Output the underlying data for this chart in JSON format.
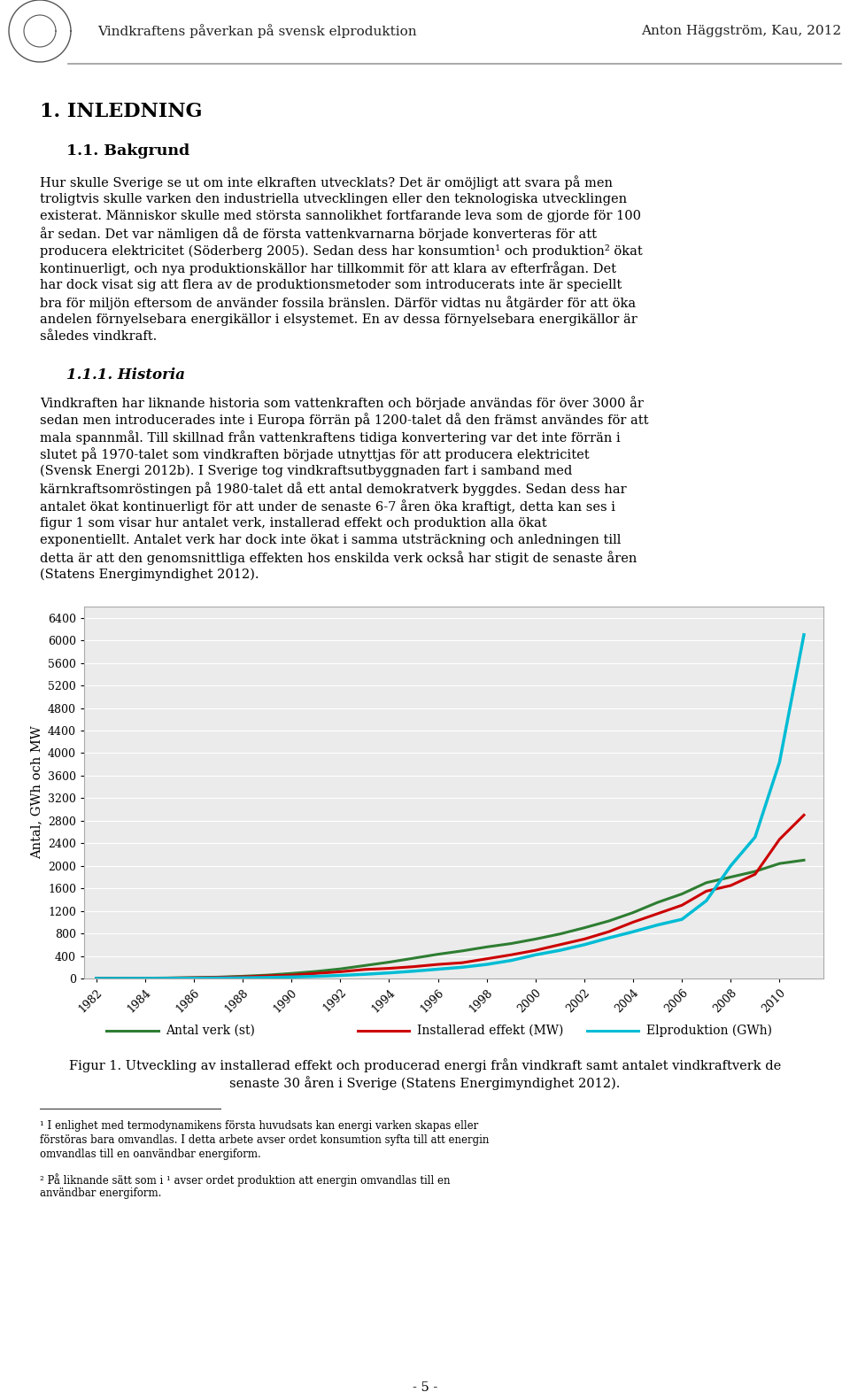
{
  "header_title": "Vindkraftens påverkan på svensk elproduktion",
  "header_author": "Anton Häggström, Kau, 2012",
  "section1": "1. INLEDNING",
  "section1_1": "1.1. Bakgrund",
  "para1": "Hur skulle Sverige se ut om inte elkraften utvecklats? Det är omöjligt att svara på men troligtvis skulle varken den industriella utvecklingen eller den teknologiska utvecklingen existerat. Människor skulle med största sannolikhet fortfarande leva som de gjorde för 100 år sedan. Det var nämligen då de första vattenkvarnarna började konverteras för att producera elektricitet (Söderberg 2005). Sedan dess har konsumtion¹ och produktion² ökat kontinuerligt, och nya produktionskällor har tillkommit för att klara av efterfrågan. Det har dock visat sig att flera av de produktionsmetoder som introducerats inte är speciellt bra för miljön eftersom de använder fossila bränslen. Därför vidtas nu åtgärder för att öka andelen förnyelsebara energikällor i elsystemet. En av dessa förnyelsebara energikällor är således vindkraft.",
  "section1_1_1": "1.1.1. Historia",
  "para2": "Vindkraften har liknande historia som vattenkraften och började användas för över 3000 år sedan men introducerades inte i Europa förrän på 1200-talet då den främst användes för att mala spannmål. Till skillnad från vattenkraftens tidiga konvertering var det inte förrän i slutet på 1970-talet som vindkraften började utnyttjas för att producera elektricitet (Svensk Energi 2012b). I Sverige tog vindkraftsutbyggnaden fart i samband med kärnkraftsomröstingen på 1980-talet då ett antal demokratverk byggdes. Sedan dess har antalet ökat kontinuerligt för att under de senaste 6-7 åren öka kraftigt, detta kan ses i figur 1 som visar hur antalet verk, installerad effekt och produktion alla ökat exponentiellt. Antalet verk har dock inte ökat i samma utsträckning och anledningen till detta är att den genomsnittliga effekten hos enskilda verk också har stigit de senaste åren (Statens Energimyndighet 2012).",
  "ylabel": "Antal, GWh och MW",
  "yticks": [
    0,
    400,
    800,
    1200,
    1600,
    2000,
    2400,
    2800,
    3200,
    3600,
    4000,
    4400,
    4800,
    5200,
    5600,
    6000,
    6400
  ],
  "years": [
    1982,
    1983,
    1984,
    1985,
    1986,
    1987,
    1988,
    1989,
    1990,
    1991,
    1992,
    1993,
    1994,
    1995,
    1996,
    1997,
    1998,
    1999,
    2000,
    2001,
    2002,
    2003,
    2004,
    2005,
    2006,
    2007,
    2008,
    2009,
    2010,
    2011
  ],
  "antal_verk": [
    2,
    4,
    6,
    10,
    16,
    25,
    40,
    60,
    90,
    125,
    170,
    230,
    290,
    360,
    430,
    490,
    560,
    620,
    700,
    790,
    900,
    1020,
    1170,
    1350,
    1500,
    1700,
    1800,
    1900,
    2040,
    2100
  ],
  "installerad_effekt": [
    1,
    2,
    4,
    8,
    14,
    20,
    30,
    45,
    60,
    90,
    120,
    160,
    180,
    210,
    250,
    280,
    350,
    420,
    500,
    600,
    700,
    830,
    1000,
    1150,
    1300,
    1550,
    1650,
    1850,
    2470,
    2900
  ],
  "elproduktion": [
    0,
    1,
    2,
    3,
    5,
    8,
    12,
    18,
    27,
    38,
    55,
    75,
    100,
    130,
    165,
    200,
    250,
    320,
    420,
    500,
    600,
    720,
    830,
    950,
    1050,
    1380,
    2000,
    2510,
    3840,
    6100
  ],
  "color_antal": "#2e7d32",
  "color_effekt": "#cc0000",
  "color_elprod": "#00bcd4",
  "legend_antal": "Antal verk (st)",
  "legend_effekt": "Installerad effekt (MW)",
  "legend_elprod": "Elproduktion (GWh)",
  "fig_caption_line1": "Figur 1. Utveckling av installerad effekt och producerad energi från vindkraft samt antalet vindkraftverk de",
  "fig_caption_line2": "senaste 30 åren i Sverige (Statens Energimyndighet 2012).",
  "footnote1": "¹ I enlighet med termodynamikens första huvudsats kan energi varken skapas eller förstöras bara omvandlas. I detta arbete avser ordet konsumtion syfta till att energin omvandlas till en oanvändbar energiform.",
  "footnote2": "² På liknande sätt som i ¹ avser ordet produktion att energin omvandlas till en användbar energiform.",
  "page_number": "- 5 -",
  "bg_color": "#ffffff",
  "chart_bg": "#ebebeb",
  "grid_color": "#ffffff",
  "xtick_labels": [
    "1982",
    "1984",
    "1986",
    "1988",
    "1990",
    "1992",
    "1994",
    "1996",
    "1998",
    "2000",
    "2002",
    "2004",
    "2006",
    "2008",
    "2010"
  ]
}
